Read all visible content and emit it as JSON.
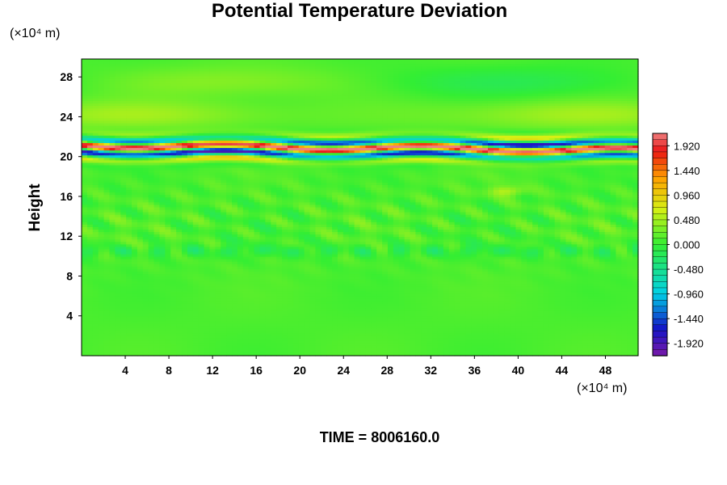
{
  "chart_data": {
    "type": "heatmap",
    "title": "Potential Temperature Deviation",
    "ylabel": "Height",
    "xlabel": "",
    "x_unit": "(×10⁴ m)",
    "y_unit": "(×10⁴ m)",
    "xlim": [
      0,
      51
    ],
    "ylim": [
      0,
      29.8
    ],
    "x_ticks": [
      4,
      8,
      12,
      16,
      20,
      24,
      28,
      32,
      36,
      40,
      44,
      48
    ],
    "y_ticks": [
      4,
      8,
      12,
      16,
      20,
      24,
      28
    ],
    "colorbar": {
      "min": -2.16,
      "max": 2.16,
      "labels": [
        "1.920",
        "1.440",
        "0.960",
        "0.480",
        "0.000",
        "-0.480",
        "-0.960",
        "-1.440",
        "-1.920"
      ],
      "label_values": [
        1.92,
        1.44,
        0.96,
        0.48,
        0.0,
        -0.48,
        -0.96,
        -1.44,
        -1.92
      ]
    },
    "features": [
      {
        "description": "strong alternating positive/negative band",
        "y_range": [
          19.5,
          22.5
        ]
      },
      {
        "description": "weak positive anomalies",
        "y_range": [
          22.5,
          26
        ]
      },
      {
        "description": "weak mixed anomalies",
        "y_range": [
          9,
          18.5
        ]
      }
    ],
    "grid": false,
    "legend": "right colorbar"
  },
  "footer": {
    "time_label": "TIME = 8006160.0"
  },
  "colors": {
    "background_field": "#33ee33",
    "positive_max": "#f08080",
    "negative_max": "#7a1aa8"
  }
}
